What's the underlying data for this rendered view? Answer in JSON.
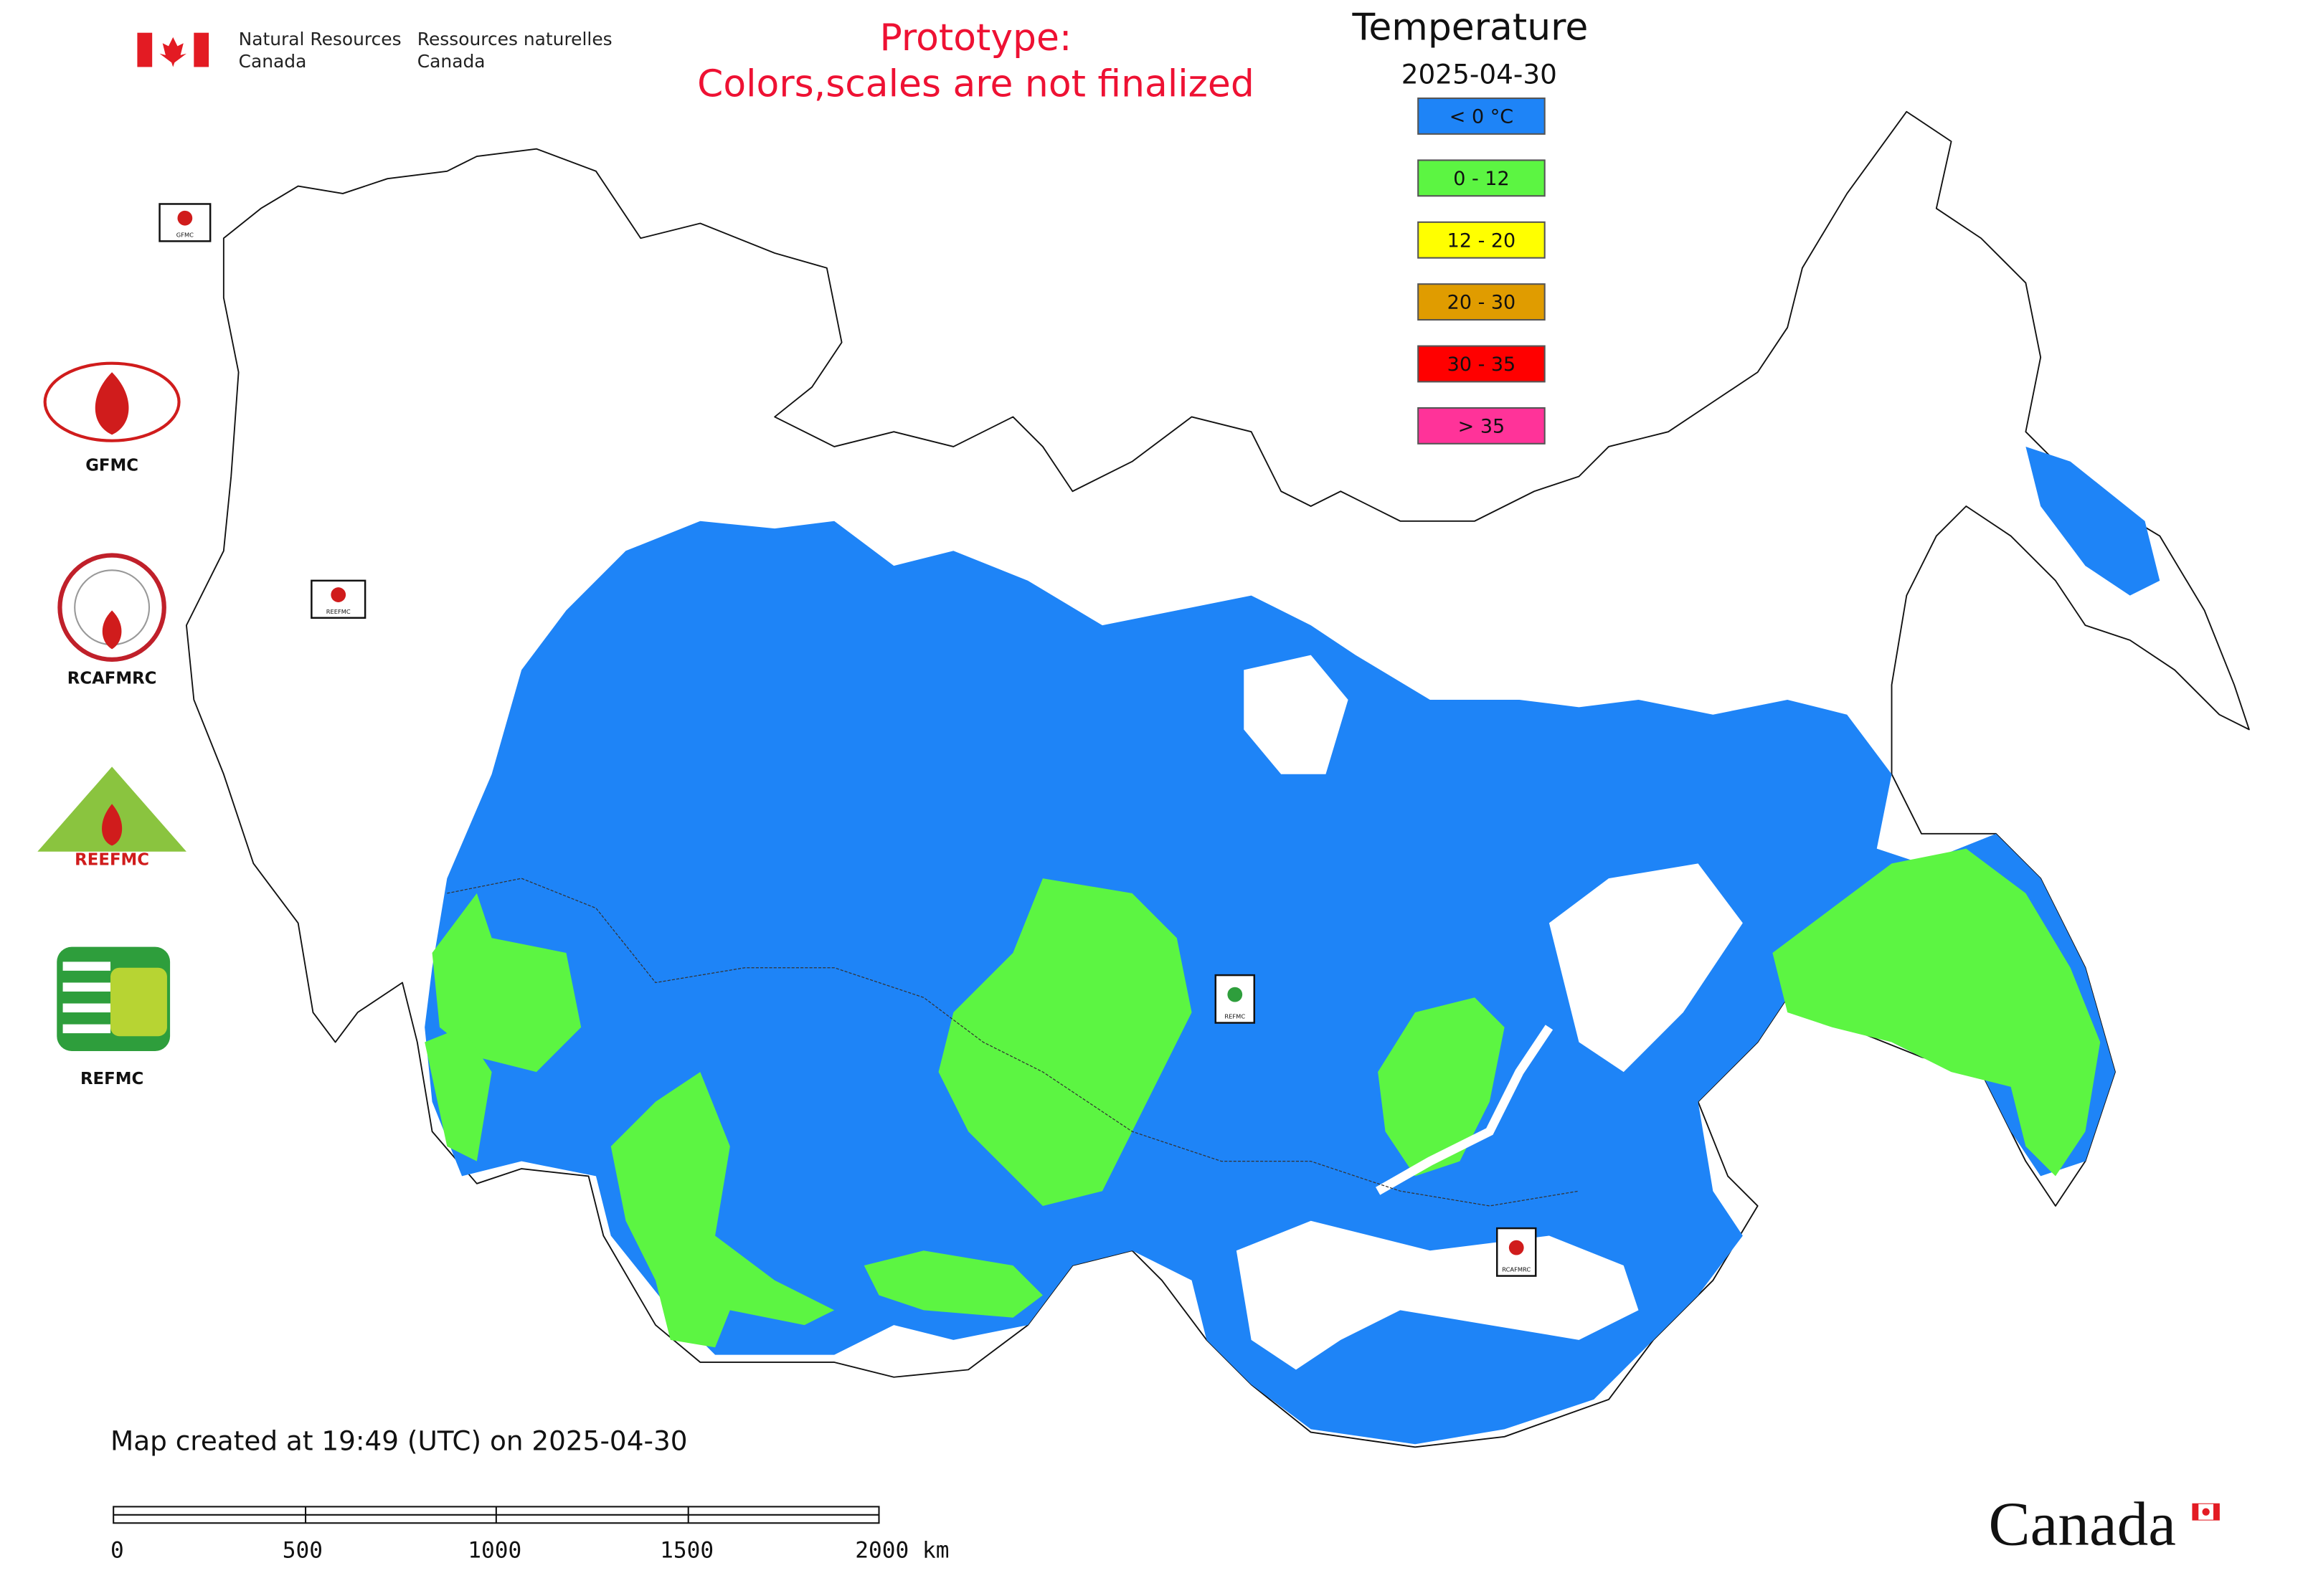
{
  "header": {
    "agency_en": [
      "Natural Resources",
      "Canada"
    ],
    "agency_fr": [
      "Ressources naturelles",
      "Canada"
    ]
  },
  "notice": [
    "Prototype:",
    "Colors,scales are not finalized"
  ],
  "legend": {
    "title": "Temperature",
    "date": "2025-04-30",
    "items": [
      {
        "label": "< 0 °C",
        "color": "#1e84f7"
      },
      {
        "label": "0 - 12",
        "color": "#5cf542"
      },
      {
        "label": "12 - 20",
        "color": "#ffff00"
      },
      {
        "label": "20 - 30",
        "color": "#e09c00"
      },
      {
        "label": "30 - 35",
        "color": "#ff0000"
      },
      {
        "label": "> 35",
        "color": "#ff3399"
      }
    ]
  },
  "logos": [
    "GFMC",
    "RCAFMRC",
    "REEFMC",
    "REFMC"
  ],
  "map_insets": [
    "GFMC",
    "REEFMC",
    "REFMC",
    "RCAFMRC"
  ],
  "footer": {
    "created": "Map created at 19:49 (UTC) on 2025-04-30",
    "scale_labels": [
      "0",
      "500",
      "1000",
      "1500",
      "2000 km"
    ],
    "wordmark": "Canada"
  }
}
